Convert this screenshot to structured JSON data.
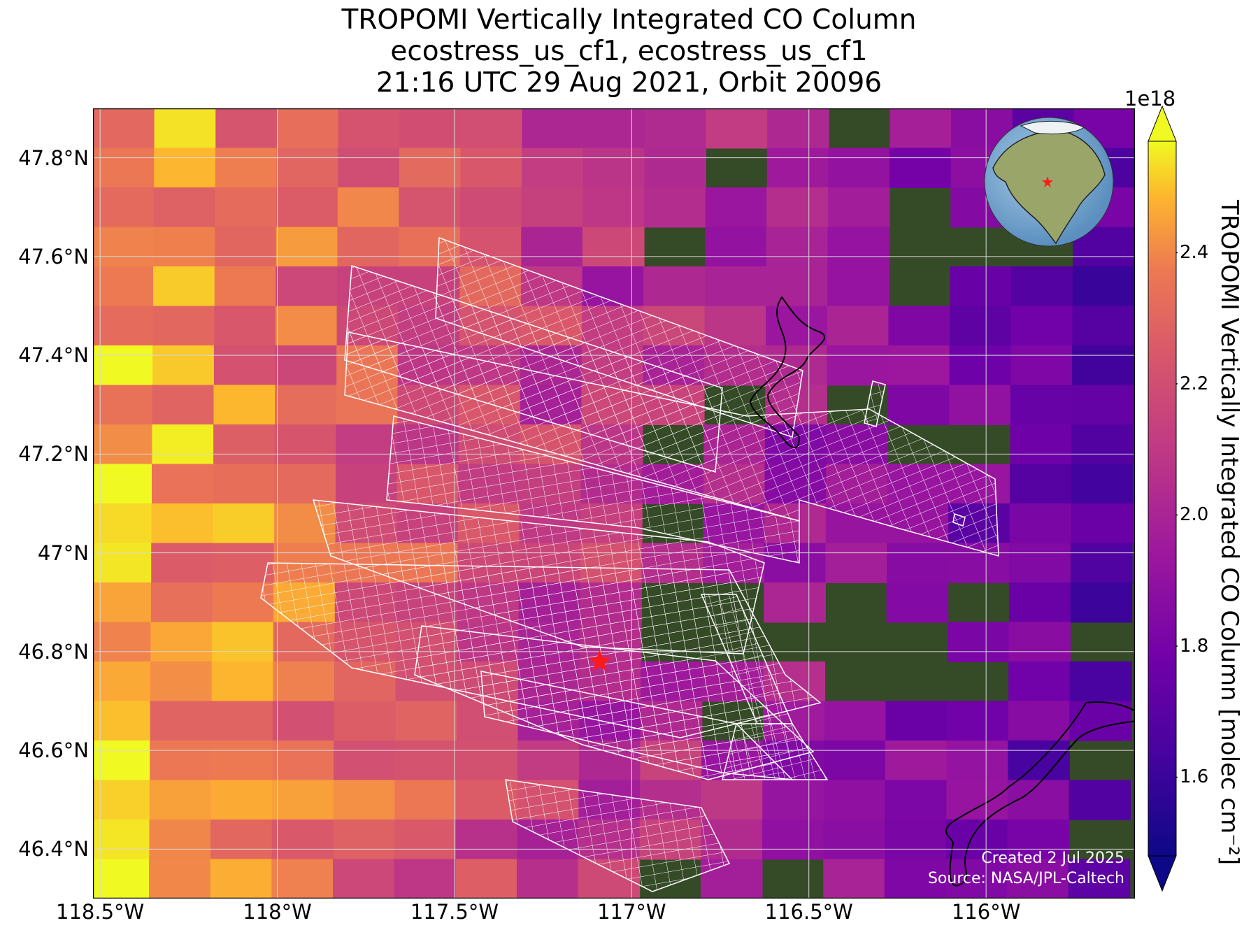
{
  "title": {
    "line1": "TROPOMI Vertically Integrated CO Column",
    "line2": "ecostress_us_cf1, ecostress_us_cf1",
    "line3": "21:16 UTC 29 Aug 2021, Orbit 20096"
  },
  "map": {
    "lat_ticks": [
      "47.8°N",
      "47.6°N",
      "47.4°N",
      "47.2°N",
      "47°N",
      "46.8°N",
      "46.6°N",
      "46.4°N"
    ],
    "lon_ticks": [
      "118.5°W",
      "118°W",
      "117.5°W",
      "117°W",
      "116.5°W",
      "116°W"
    ],
    "lat_values": [
      47.8,
      47.6,
      47.4,
      47.2,
      47.0,
      46.8,
      46.6,
      46.4
    ],
    "lon_values": [
      -118.5,
      -118.0,
      -117.5,
      -117.0,
      -116.5,
      -116.0
    ],
    "extent": {
      "lon_min": -118.52,
      "lon_max": -115.58,
      "lat_min": 46.3,
      "lat_max": 47.9
    },
    "target_marker": {
      "name": "star",
      "lon": -117.09,
      "lat": 46.78,
      "color": "#ff1a1a"
    },
    "inset_globe": "north-america-globe-icon"
  },
  "colorbar": {
    "label": "TROPOMI Vertically Integrated CO Column [molec cm⁻²]",
    "exponent": "1e18",
    "ticks": [
      "1.6",
      "1.8",
      "2.0",
      "2.2",
      "2.4"
    ],
    "tick_values": [
      1.6,
      1.8,
      2.0,
      2.2,
      2.4
    ],
    "range": [
      1.48,
      2.57
    ],
    "colormap": "plasma"
  },
  "credits": {
    "created": "Created 2 Jul 2025",
    "source": "Source: NASA/JPL-Caltech"
  },
  "colors": {
    "grid": "#d9d9d9",
    "footprint": "#ffffff",
    "basemap": "#354a26"
  }
}
